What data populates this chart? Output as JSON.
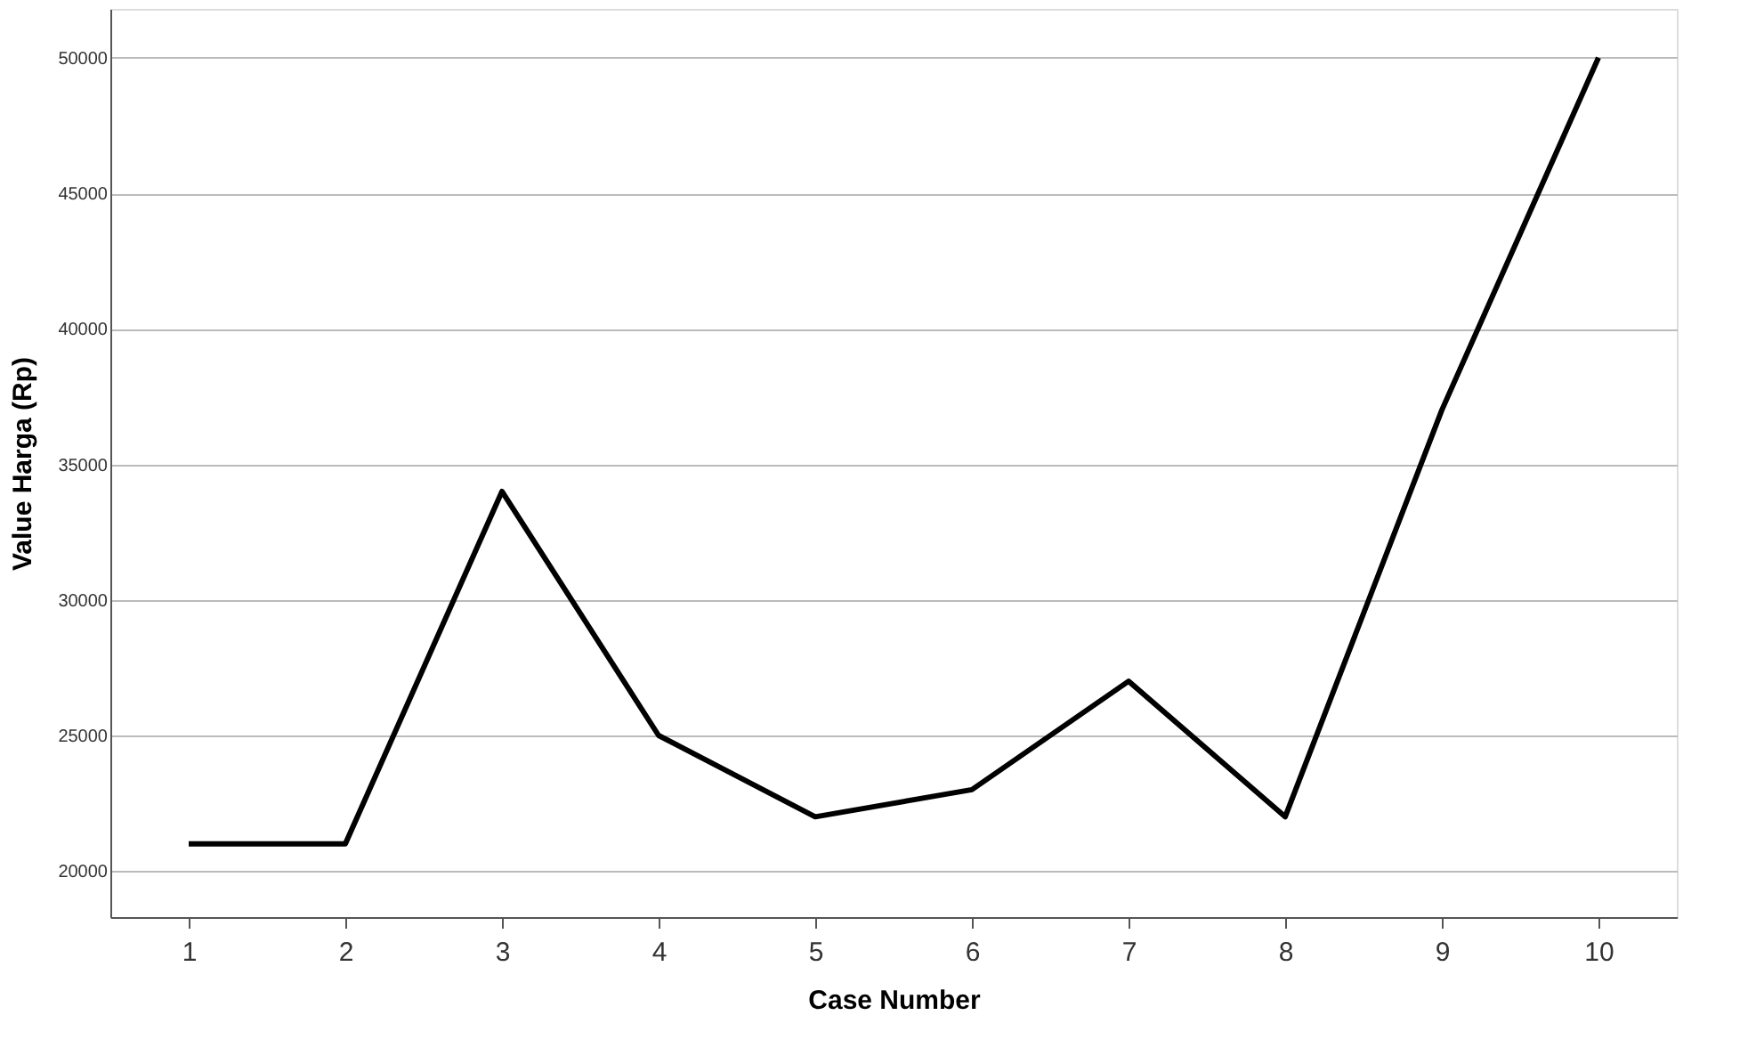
{
  "chart_data": {
    "type": "line",
    "xlabel": "Case Number",
    "ylabel": "Value Harga (Rp)",
    "categories": [
      "1",
      "2",
      "3",
      "4",
      "5",
      "6",
      "7",
      "8",
      "9",
      "10"
    ],
    "series": [
      {
        "color": "#000000",
        "values": [
          21000,
          21000,
          34000,
          25000,
          22000,
          23000,
          27000,
          22000,
          37000,
          50000
        ]
      }
    ],
    "ylim": [
      18300,
      51800
    ],
    "yticks": [
      20000,
      25000,
      30000,
      35000,
      40000,
      45000,
      50000
    ],
    "grid": "y",
    "marker": "none",
    "line_style": "solid"
  }
}
